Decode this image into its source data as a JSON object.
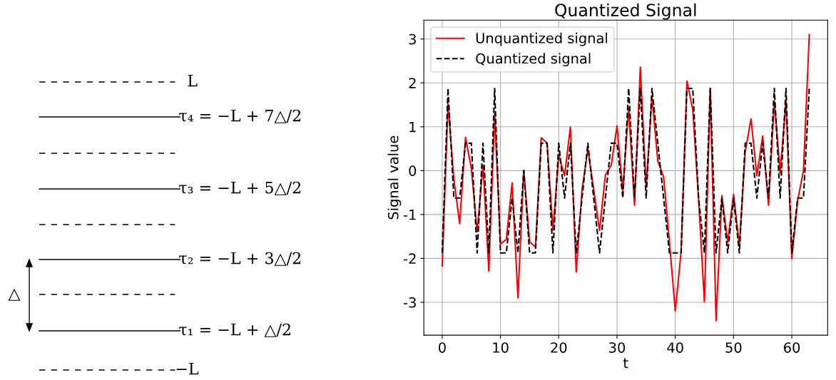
{
  "chart_data": [
    {
      "type": "other",
      "annotations": [
        "L",
        "τ₄ = −L + 7△/2",
        "τ₃ = −L + 5△/2",
        "τ₂ = −L + 3△/2",
        "△",
        "τ₁ = −L + △/2",
        "−L"
      ]
    },
    {
      "type": "line",
      "title": "Quantized Signal",
      "xlabel": "t",
      "ylabel": "Signal value",
      "x": [
        0,
        1,
        2,
        3,
        4,
        5,
        6,
        7,
        8,
        9,
        10,
        11,
        12,
        13,
        14,
        15,
        16,
        17,
        18,
        19,
        20,
        21,
        22,
        23,
        24,
        25,
        26,
        27,
        28,
        29,
        30,
        31,
        32,
        33,
        34,
        35,
        36,
        37,
        38,
        39,
        40,
        41,
        42,
        43,
        44,
        45,
        46,
        47,
        48,
        49,
        50,
        51,
        52,
        53,
        54,
        55,
        56,
        57,
        58,
        59,
        60,
        61,
        62,
        63
      ],
      "series": [
        {
          "name": "Unquantized signal",
          "color": "#ff0000",
          "line_style": "solid",
          "values": [
            -2.17,
            1.52,
            -0.2,
            -1.21,
            0.76,
            0.05,
            -1.39,
            0.12,
            -2.29,
            1.3,
            -1.67,
            -1.57,
            -0.28,
            -2.9,
            0.01,
            -1.62,
            -1.74,
            0.75,
            0.63,
            -1.36,
            0.35,
            -0.11,
            0.99,
            -2.31,
            -0.43,
            0.49,
            -0.43,
            -1.36,
            -0.1,
            0.12,
            1.02,
            -0.46,
            1.44,
            -0.79,
            2.36,
            -0.38,
            1.68,
            0.22,
            -0.14,
            -1.63,
            -3.2,
            -1.85,
            2.04,
            1.39,
            -0.65,
            -2.99,
            1.875,
            -3.42,
            -0.57,
            -1.63,
            -0.54,
            -1.71,
            0.43,
            1.18,
            -0.12,
            0.79,
            -0.79,
            1.58,
            -0.05,
            1.58,
            -2.0,
            -0.68,
            0.0,
            3.1
          ]
        },
        {
          "name": "Quantized signal",
          "color": "#000000",
          "line_style": "dashed",
          "values": [
            -1.875,
            1.875,
            -0.625,
            -0.625,
            0.625,
            0.625,
            -1.875,
            0.625,
            -1.875,
            1.875,
            -1.875,
            -1.875,
            -0.625,
            -1.875,
            0,
            -1.875,
            -1.875,
            0.625,
            0.625,
            -1.875,
            0.625,
            -0.625,
            0.625,
            -1.875,
            -0.625,
            0.625,
            -0.625,
            -1.875,
            -0.625,
            0.625,
            0.625,
            -0.625,
            1.875,
            -0.625,
            1.875,
            -0.625,
            1.875,
            0.625,
            -0.625,
            -1.875,
            -1.875,
            -1.875,
            1.875,
            1.875,
            -0.625,
            -1.875,
            1.875,
            -1.875,
            -0.625,
            -1.875,
            -0.625,
            -1.875,
            0.625,
            0.625,
            -0.625,
            0.625,
            -0.625,
            1.875,
            -0.625,
            1.875,
            -1.875,
            -0.625,
            -0.625,
            1.875
          ]
        }
      ],
      "xlim": [
        -3.15,
        66.15
      ],
      "xticks": [
        0,
        10,
        20,
        30,
        40,
        50,
        60
      ],
      "ylim": [
        -3.75,
        3.43
      ],
      "yticks": [
        -3,
        -2,
        -1,
        0,
        1,
        2,
        3
      ],
      "grid": true,
      "legend": "top left",
      "marker": "none"
    }
  ]
}
